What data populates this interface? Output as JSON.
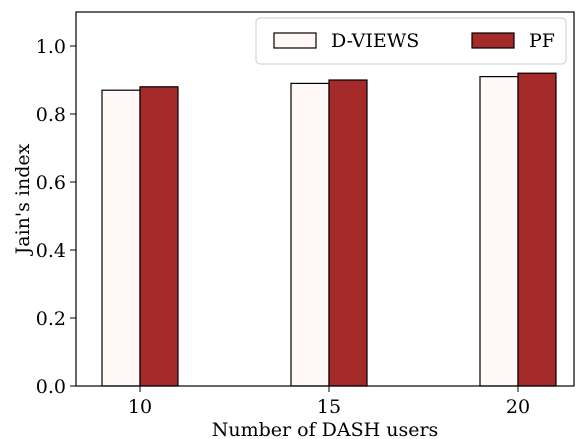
{
  "chart_data": {
    "type": "bar",
    "title": "",
    "xlabel": "Number of DASH users",
    "ylabel": "Jain's index",
    "categories": [
      "10",
      "15",
      "20"
    ],
    "ylim": [
      0,
      1.1
    ],
    "yticks": [
      "0.0",
      "0.2",
      "0.4",
      "0.6",
      "0.8",
      "1.0"
    ],
    "grid": false,
    "legend_position": "top-right",
    "series": [
      {
        "name": "D-VIEWS",
        "values": [
          0.87,
          0.89,
          0.91
        ],
        "color": "#fff8f7",
        "edge": "#000000"
      },
      {
        "name": "PF",
        "values": [
          0.88,
          0.9,
          0.92
        ],
        "color": "#a52a2a",
        "edge": "#000000"
      }
    ]
  }
}
